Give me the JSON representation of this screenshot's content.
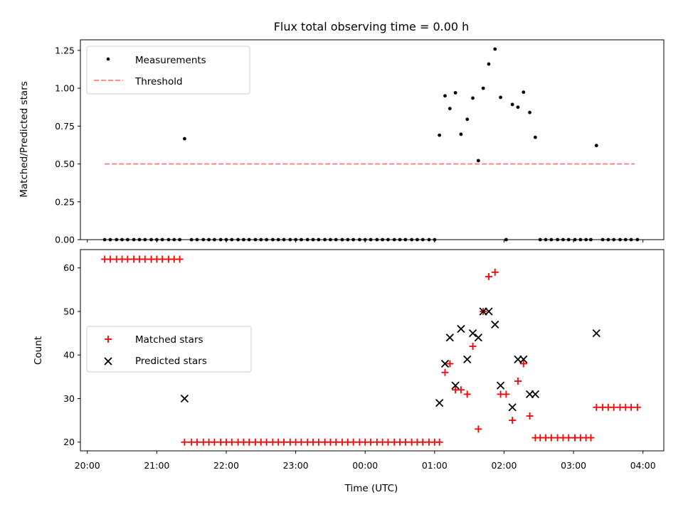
{
  "chart_data": [
    {
      "type": "scatter",
      "title": "Flux total observing time = 0.00 h",
      "xlabel": "",
      "ylabel": "Matched/Predicted stars",
      "ylim": [
        0,
        1.32
      ],
      "yticks": [
        "0.00",
        "0.25",
        "0.50",
        "0.75",
        "1.00",
        "1.25"
      ],
      "legend_position": "upper-left",
      "grid": false,
      "series": [
        {
          "name": "Measurements",
          "style": "dot",
          "color": "#000000",
          "points": [
            [
              20.25,
              0
            ],
            [
              20.33,
              0
            ],
            [
              20.42,
              0
            ],
            [
              20.5,
              0
            ],
            [
              20.58,
              0
            ],
            [
              20.67,
              0
            ],
            [
              20.75,
              0
            ],
            [
              20.83,
              0
            ],
            [
              20.92,
              0
            ],
            [
              21.0,
              0
            ],
            [
              21.08,
              0
            ],
            [
              21.17,
              0
            ],
            [
              21.25,
              0
            ],
            [
              21.33,
              0
            ],
            [
              21.4,
              0.667
            ],
            [
              21.5,
              0
            ],
            [
              21.58,
              0
            ],
            [
              21.67,
              0
            ],
            [
              21.75,
              0
            ],
            [
              21.83,
              0
            ],
            [
              21.92,
              0
            ],
            [
              22.0,
              0
            ],
            [
              22.08,
              0
            ],
            [
              22.17,
              0
            ],
            [
              22.25,
              0
            ],
            [
              22.33,
              0
            ],
            [
              22.42,
              0
            ],
            [
              22.5,
              0
            ],
            [
              22.58,
              0
            ],
            [
              22.67,
              0
            ],
            [
              22.75,
              0
            ],
            [
              22.83,
              0
            ],
            [
              22.92,
              0
            ],
            [
              23.0,
              0
            ],
            [
              23.08,
              0
            ],
            [
              23.17,
              0
            ],
            [
              23.25,
              0
            ],
            [
              23.33,
              0
            ],
            [
              23.42,
              0
            ],
            [
              23.5,
              0
            ],
            [
              23.58,
              0
            ],
            [
              23.67,
              0
            ],
            [
              23.75,
              0
            ],
            [
              23.83,
              0
            ],
            [
              23.92,
              0
            ],
            [
              24.0,
              0
            ],
            [
              24.08,
              0
            ],
            [
              24.17,
              0
            ],
            [
              24.25,
              0
            ],
            [
              24.33,
              0
            ],
            [
              24.42,
              0
            ],
            [
              24.5,
              0
            ],
            [
              24.58,
              0
            ],
            [
              24.67,
              0
            ],
            [
              24.75,
              0
            ],
            [
              24.83,
              0
            ],
            [
              24.92,
              0
            ],
            [
              25.0,
              0
            ],
            [
              25.07,
              0.69
            ],
            [
              25.15,
              0.95
            ],
            [
              25.22,
              0.866
            ],
            [
              25.3,
              0.97
            ],
            [
              25.38,
              0.696
            ],
            [
              25.47,
              0.795
            ],
            [
              25.55,
              0.935
            ],
            [
              25.63,
              0.522
            ],
            [
              25.7,
              1.0
            ],
            [
              25.78,
              1.16
            ],
            [
              25.87,
              1.259
            ],
            [
              25.95,
              0.94
            ],
            [
              26.03,
              0
            ],
            [
              26.12,
              0.893
            ],
            [
              26.2,
              0.875
            ],
            [
              26.28,
              0.974
            ],
            [
              26.37,
              0.84
            ],
            [
              26.45,
              0.676
            ],
            [
              26.52,
              0
            ],
            [
              26.6,
              0
            ],
            [
              26.68,
              0
            ],
            [
              26.77,
              0
            ],
            [
              26.85,
              0
            ],
            [
              26.93,
              0
            ],
            [
              27.02,
              0
            ],
            [
              27.1,
              0
            ],
            [
              27.18,
              0
            ],
            [
              27.25,
              0
            ],
            [
              27.33,
              0.622
            ],
            [
              27.42,
              0
            ],
            [
              27.5,
              0
            ],
            [
              27.58,
              0
            ],
            [
              27.67,
              0
            ],
            [
              27.75,
              0
            ],
            [
              27.83,
              0
            ],
            [
              27.92,
              0
            ]
          ]
        },
        {
          "name": "Threshold",
          "style": "dashed-line",
          "color": "#ff7f7f",
          "points": [
            [
              20.25,
              0.5
            ],
            [
              27.88,
              0.5
            ]
          ]
        }
      ]
    },
    {
      "type": "scatter",
      "title": "",
      "xlabel": "Time (UTC)",
      "ylabel": "Count",
      "ylim": [
        18,
        64.2
      ],
      "yticks": [
        "20",
        "30",
        "40",
        "50",
        "60"
      ],
      "xlim": [
        19.9,
        28.3
      ],
      "xticks": [
        [
          20,
          "20:00"
        ],
        [
          21,
          "21:00"
        ],
        [
          22,
          "22:00"
        ],
        [
          23,
          "23:00"
        ],
        [
          24,
          "00:00"
        ],
        [
          25,
          "01:00"
        ],
        [
          26,
          "02:00"
        ],
        [
          27,
          "03:00"
        ],
        [
          28,
          "04:00"
        ]
      ],
      "legend_position": "center-left",
      "grid": false,
      "series": [
        {
          "name": "Matched stars",
          "style": "plus",
          "color": "#ff0000",
          "points": [
            [
              20.25,
              62
            ],
            [
              20.33,
              62
            ],
            [
              20.42,
              62
            ],
            [
              20.5,
              62
            ],
            [
              20.58,
              62
            ],
            [
              20.67,
              62
            ],
            [
              20.75,
              62
            ],
            [
              20.83,
              62
            ],
            [
              20.92,
              62
            ],
            [
              21.0,
              62
            ],
            [
              21.08,
              62
            ],
            [
              21.17,
              62
            ],
            [
              21.25,
              62
            ],
            [
              21.33,
              62
            ],
            [
              21.4,
              20
            ],
            [
              21.5,
              20
            ],
            [
              21.58,
              20
            ],
            [
              21.67,
              20
            ],
            [
              21.75,
              20
            ],
            [
              21.83,
              20
            ],
            [
              21.92,
              20
            ],
            [
              22.0,
              20
            ],
            [
              22.08,
              20
            ],
            [
              22.17,
              20
            ],
            [
              22.25,
              20
            ],
            [
              22.33,
              20
            ],
            [
              22.42,
              20
            ],
            [
              22.5,
              20
            ],
            [
              22.58,
              20
            ],
            [
              22.67,
              20
            ],
            [
              22.75,
              20
            ],
            [
              22.83,
              20
            ],
            [
              22.92,
              20
            ],
            [
              23.0,
              20
            ],
            [
              23.08,
              20
            ],
            [
              23.17,
              20
            ],
            [
              23.25,
              20
            ],
            [
              23.33,
              20
            ],
            [
              23.42,
              20
            ],
            [
              23.5,
              20
            ],
            [
              23.58,
              20
            ],
            [
              23.67,
              20
            ],
            [
              23.75,
              20
            ],
            [
              23.83,
              20
            ],
            [
              23.92,
              20
            ],
            [
              24.0,
              20
            ],
            [
              24.08,
              20
            ],
            [
              24.17,
              20
            ],
            [
              24.25,
              20
            ],
            [
              24.33,
              20
            ],
            [
              24.42,
              20
            ],
            [
              24.5,
              20
            ],
            [
              24.58,
              20
            ],
            [
              24.67,
              20
            ],
            [
              24.75,
              20
            ],
            [
              24.83,
              20
            ],
            [
              24.92,
              20
            ],
            [
              25.0,
              20
            ],
            [
              25.07,
              20
            ],
            [
              25.15,
              36
            ],
            [
              25.22,
              38
            ],
            [
              25.3,
              32
            ],
            [
              25.38,
              32
            ],
            [
              25.47,
              31
            ],
            [
              25.55,
              42
            ],
            [
              25.63,
              23
            ],
            [
              25.7,
              50
            ],
            [
              25.78,
              58
            ],
            [
              25.87,
              59
            ],
            [
              25.95,
              31
            ],
            [
              26.03,
              31
            ],
            [
              26.12,
              25
            ],
            [
              26.2,
              34
            ],
            [
              26.28,
              38
            ],
            [
              26.37,
              26
            ],
            [
              26.45,
              21
            ],
            [
              26.52,
              21
            ],
            [
              26.6,
              21
            ],
            [
              26.68,
              21
            ],
            [
              26.77,
              21
            ],
            [
              26.85,
              21
            ],
            [
              26.93,
              21
            ],
            [
              27.02,
              21
            ],
            [
              27.1,
              21
            ],
            [
              27.18,
              21
            ],
            [
              27.25,
              21
            ],
            [
              27.33,
              28
            ],
            [
              27.42,
              28
            ],
            [
              27.5,
              28
            ],
            [
              27.58,
              28
            ],
            [
              27.67,
              28
            ],
            [
              27.75,
              28
            ],
            [
              27.83,
              28
            ],
            [
              27.92,
              28
            ]
          ]
        },
        {
          "name": "Predicted stars",
          "style": "x",
          "color": "#000000",
          "points": [
            [
              21.4,
              30
            ],
            [
              25.07,
              29
            ],
            [
              25.15,
              38
            ],
            [
              25.22,
              44
            ],
            [
              25.3,
              33
            ],
            [
              25.38,
              46
            ],
            [
              25.47,
              39
            ],
            [
              25.55,
              45
            ],
            [
              25.63,
              44
            ],
            [
              25.7,
              50
            ],
            [
              25.78,
              50
            ],
            [
              25.87,
              47
            ],
            [
              25.95,
              33
            ],
            [
              26.12,
              28
            ],
            [
              26.2,
              39
            ],
            [
              26.28,
              39
            ],
            [
              26.37,
              31
            ],
            [
              26.45,
              31
            ],
            [
              27.33,
              45
            ]
          ]
        }
      ]
    }
  ]
}
